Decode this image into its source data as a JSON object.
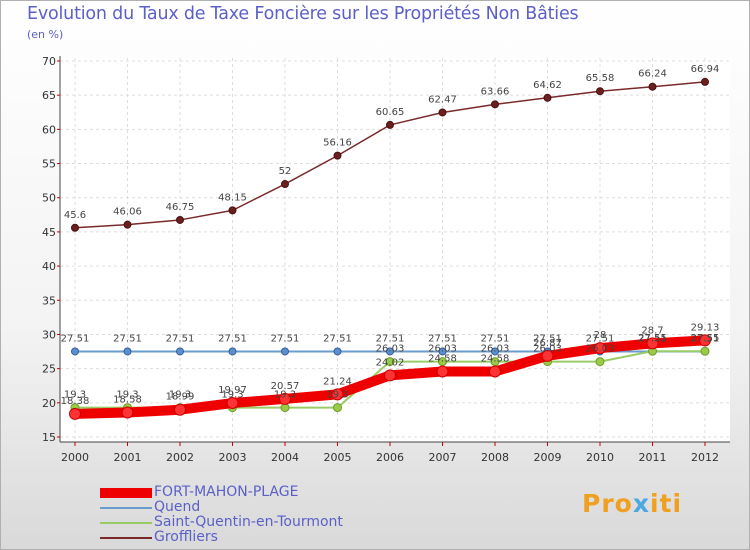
{
  "chart_data": {
    "type": "line",
    "title": "Evolution du Taux de Taxe Foncière sur les Propriétés Non Bâties",
    "ylabel": "(en %)",
    "xlabel": "",
    "ylim": [
      15,
      70
    ],
    "yticks": [
      15,
      20,
      25,
      30,
      35,
      40,
      45,
      50,
      55,
      60,
      65,
      70
    ],
    "categories": [
      "2000",
      "2001",
      "2002",
      "2003",
      "2004",
      "2005",
      "2006",
      "2007",
      "2008",
      "2009",
      "2010",
      "2011",
      "2012"
    ],
    "series": [
      {
        "name": "FORT-MAHON-PLAGE",
        "color": "#ee0000",
        "values": [
          18.38,
          18.58,
          18.99,
          19.97,
          20.57,
          21.24,
          24.02,
          24.58,
          24.58,
          26.87,
          28,
          28.7,
          29.13
        ],
        "labels": [
          "18.38",
          "18.58",
          "18.99",
          "19.97",
          "20.57",
          "21.24",
          "24.02",
          "24.58",
          "24.58",
          "26.87",
          "28",
          "28.7",
          "29.13"
        ]
      },
      {
        "name": "Quend",
        "color": "#6a9ccd",
        "values": [
          27.51,
          27.51,
          27.51,
          27.51,
          27.51,
          27.51,
          27.51,
          27.51,
          27.51,
          27.51,
          27.51,
          27.51,
          27.51
        ],
        "labels": [
          "27.51",
          "27.51",
          "27.51",
          "27.51",
          "27.51",
          "27.51",
          "27.51",
          "27.51",
          "27.51",
          "27.51",
          "27.51",
          "27.51",
          "27.51"
        ]
      },
      {
        "name": "Saint-Quentin-en-Tourmont",
        "color": "#99cc66",
        "values": [
          19.3,
          19.3,
          19.3,
          19.3,
          19.3,
          19.3,
          26.03,
          26.03,
          26.03,
          26.03,
          26.03,
          27.55,
          27.55
        ],
        "labels": [
          "19.3",
          "19.3",
          "19.3",
          "19.3",
          "19.3",
          "19.3",
          "26.03",
          "26.03",
          "26.03",
          "26.03",
          "26.03",
          "27.55",
          "27.55"
        ]
      },
      {
        "name": "Groffliers",
        "color": "#7a2a2a",
        "values": [
          45.6,
          46.06,
          46.75,
          48.15,
          52,
          56.16,
          60.65,
          62.47,
          63.66,
          64.62,
          65.58,
          66.24,
          66.94
        ],
        "labels": [
          "45.6",
          "46.06",
          "46.75",
          "48.15",
          "52",
          "56.16",
          "60.65",
          "62.47",
          "63.66",
          "64.62",
          "65.58",
          "66.24",
          "66.94"
        ]
      }
    ],
    "legend": "bottom-left"
  },
  "logo": {
    "text_a": "Pro",
    "text_x": "x",
    "text_b": "iti"
  }
}
